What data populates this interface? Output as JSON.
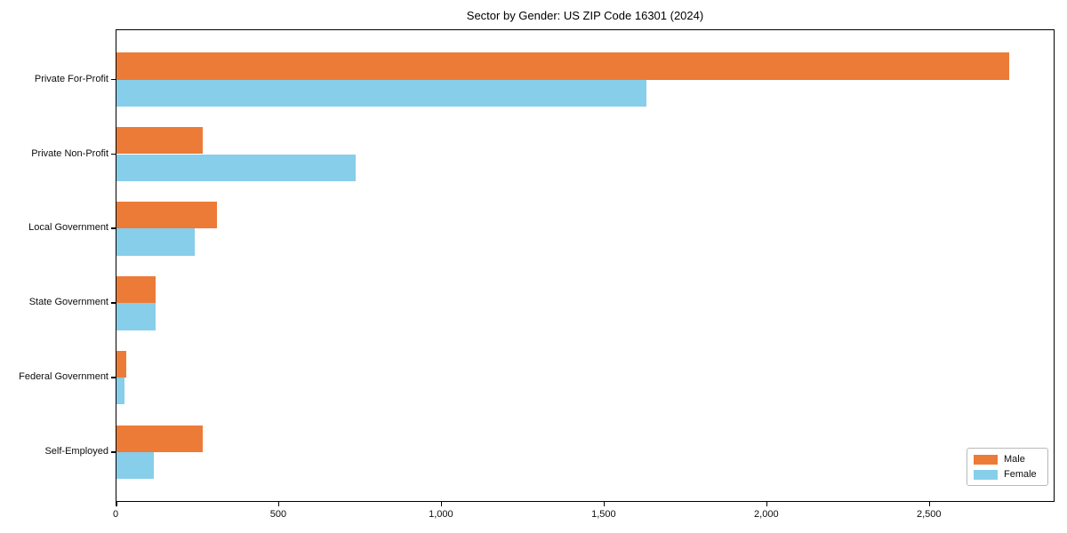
{
  "chart_data": {
    "type": "bar",
    "orientation": "horizontal",
    "title": "Sector by Gender: US ZIP Code 16301 (2024)",
    "categories": [
      "Private For-Profit",
      "Private Non-Profit",
      "Local Government",
      "State Government",
      "Federal Government",
      "Self-Employed"
    ],
    "series": [
      {
        "name": "Male",
        "color": "#ec7b38",
        "values": [
          2745,
          265,
          310,
          120,
          30,
          265
        ]
      },
      {
        "name": "Female",
        "color": "#87ceeb",
        "values": [
          1630,
          735,
          240,
          120,
          25,
          115
        ]
      }
    ],
    "xlabel": "",
    "ylabel": "",
    "xlim": [
      0,
      2886
    ],
    "xticks": [
      0,
      500,
      1000,
      1500,
      2000,
      2500
    ],
    "xtick_labels": [
      "0",
      "500",
      "1,000",
      "1,500",
      "2,000",
      "2,500"
    ],
    "grid": false,
    "legend": {
      "position": "lower right",
      "entries": [
        "Male",
        "Female"
      ]
    }
  }
}
